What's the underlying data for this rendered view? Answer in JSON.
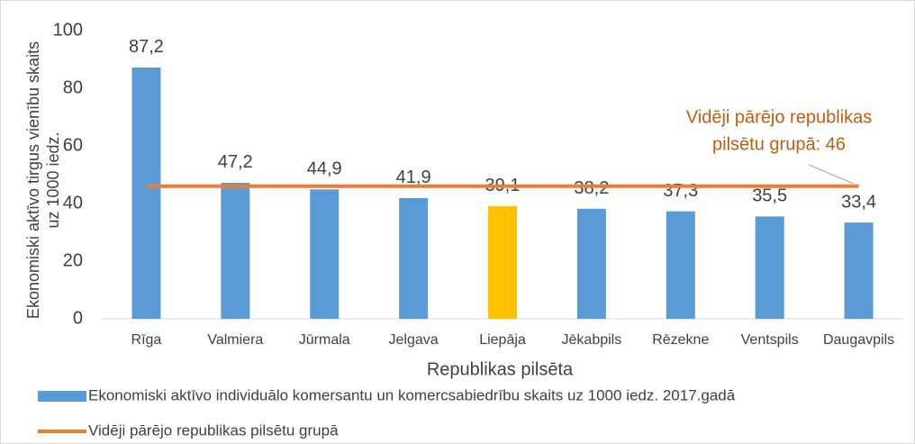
{
  "chart_data": {
    "type": "bar",
    "ylabel": [
      "Ekonomiski aktīvo tirgus vienību skaits",
      "uz 1000 iedz."
    ],
    "xlabel": "Republikas pilsēta",
    "categories": [
      "Rīga",
      "Valmiera",
      "Jūrmala",
      "Jelgava",
      "Liepāja",
      "Jēkabpils",
      "Rēzekne",
      "Ventspils",
      "Daugavpils"
    ],
    "series": [
      {
        "name": "Ekonomiski aktīvo individuālo komersantu un komercsabiedrību skaits uz 1000 iedz. 2017.gadā",
        "type": "bar",
        "color": "#5b9bd5",
        "colors": [
          "#5b9bd5",
          "#5b9bd5",
          "#5b9bd5",
          "#5b9bd5",
          "#ffc000",
          "#5b9bd5",
          "#5b9bd5",
          "#5b9bd5",
          "#5b9bd5"
        ],
        "values": [
          87.2,
          47.2,
          44.9,
          41.9,
          39.1,
          38.2,
          37.3,
          35.5,
          33.4
        ],
        "value_labels": [
          "87,2",
          "47,2",
          "44,9",
          "41,9",
          "39,1",
          "38,2",
          "37,3",
          "35,5",
          "33,4"
        ]
      },
      {
        "name": "Vidēji pārējo republikas pilsētu grupā",
        "type": "line",
        "color": "#ed7d31",
        "values": [
          46,
          46,
          46,
          46,
          46,
          46,
          46,
          46,
          46
        ]
      }
    ],
    "annotation": {
      "lines": [
        "Vidēji pārējo republikas",
        "pilsētu grupā:  46"
      ],
      "color": "#c55a11"
    },
    "ylim": [
      0,
      100
    ],
    "yticks": [
      0,
      20,
      40,
      60,
      80,
      100
    ],
    "grid": false
  }
}
